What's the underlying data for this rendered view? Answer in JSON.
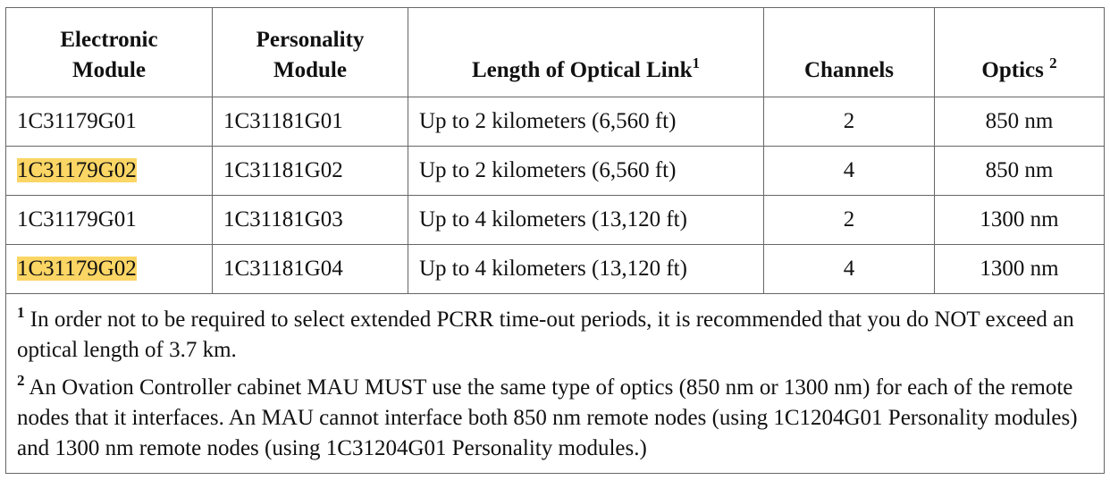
{
  "table": {
    "header": [
      {
        "text": "Electronic Module"
      },
      {
        "text": "Personality Module"
      },
      {
        "text": "Length of Optical Link",
        "note": "1"
      },
      {
        "text": "Channels"
      },
      {
        "text": "Optics",
        "note": "2"
      }
    ],
    "rows": [
      [
        "1C31179G01",
        "1C31181G01",
        "Up to 2 kilometers (6,560 ft)",
        "2",
        "850 nm"
      ],
      [
        "1C31179G02",
        "1C31181G02",
        "Up to 2 kilometers (6,560 ft)",
        "4",
        "850 nm"
      ],
      [
        "1C31179G01",
        "1C31181G03",
        "Up to 4 kilometers (13,120 ft)",
        "2",
        "1300 nm"
      ],
      [
        "1C31179G02",
        "1C31181G04",
        "Up to 4 kilometers (13,120 ft)",
        "4",
        "1300 nm"
      ]
    ],
    "footnotes": [
      {
        "marker": "1",
        "text": "In order not to be required to select extended PCRR time-out periods, it is recommended that you do NOT exceed an optical length of 3.7 km."
      },
      {
        "marker": "2",
        "text": "An Ovation Controller cabinet MAU MUST use the same type of optics (850 nm or 1300 nm) for each of the remote nodes that it interfaces. An MAU cannot interface both 850 nm remote nodes (using 1C1204G01 Personality modules) and 1300 nm remote nodes (using 1C31204G01 Personality modules.)"
      }
    ]
  }
}
